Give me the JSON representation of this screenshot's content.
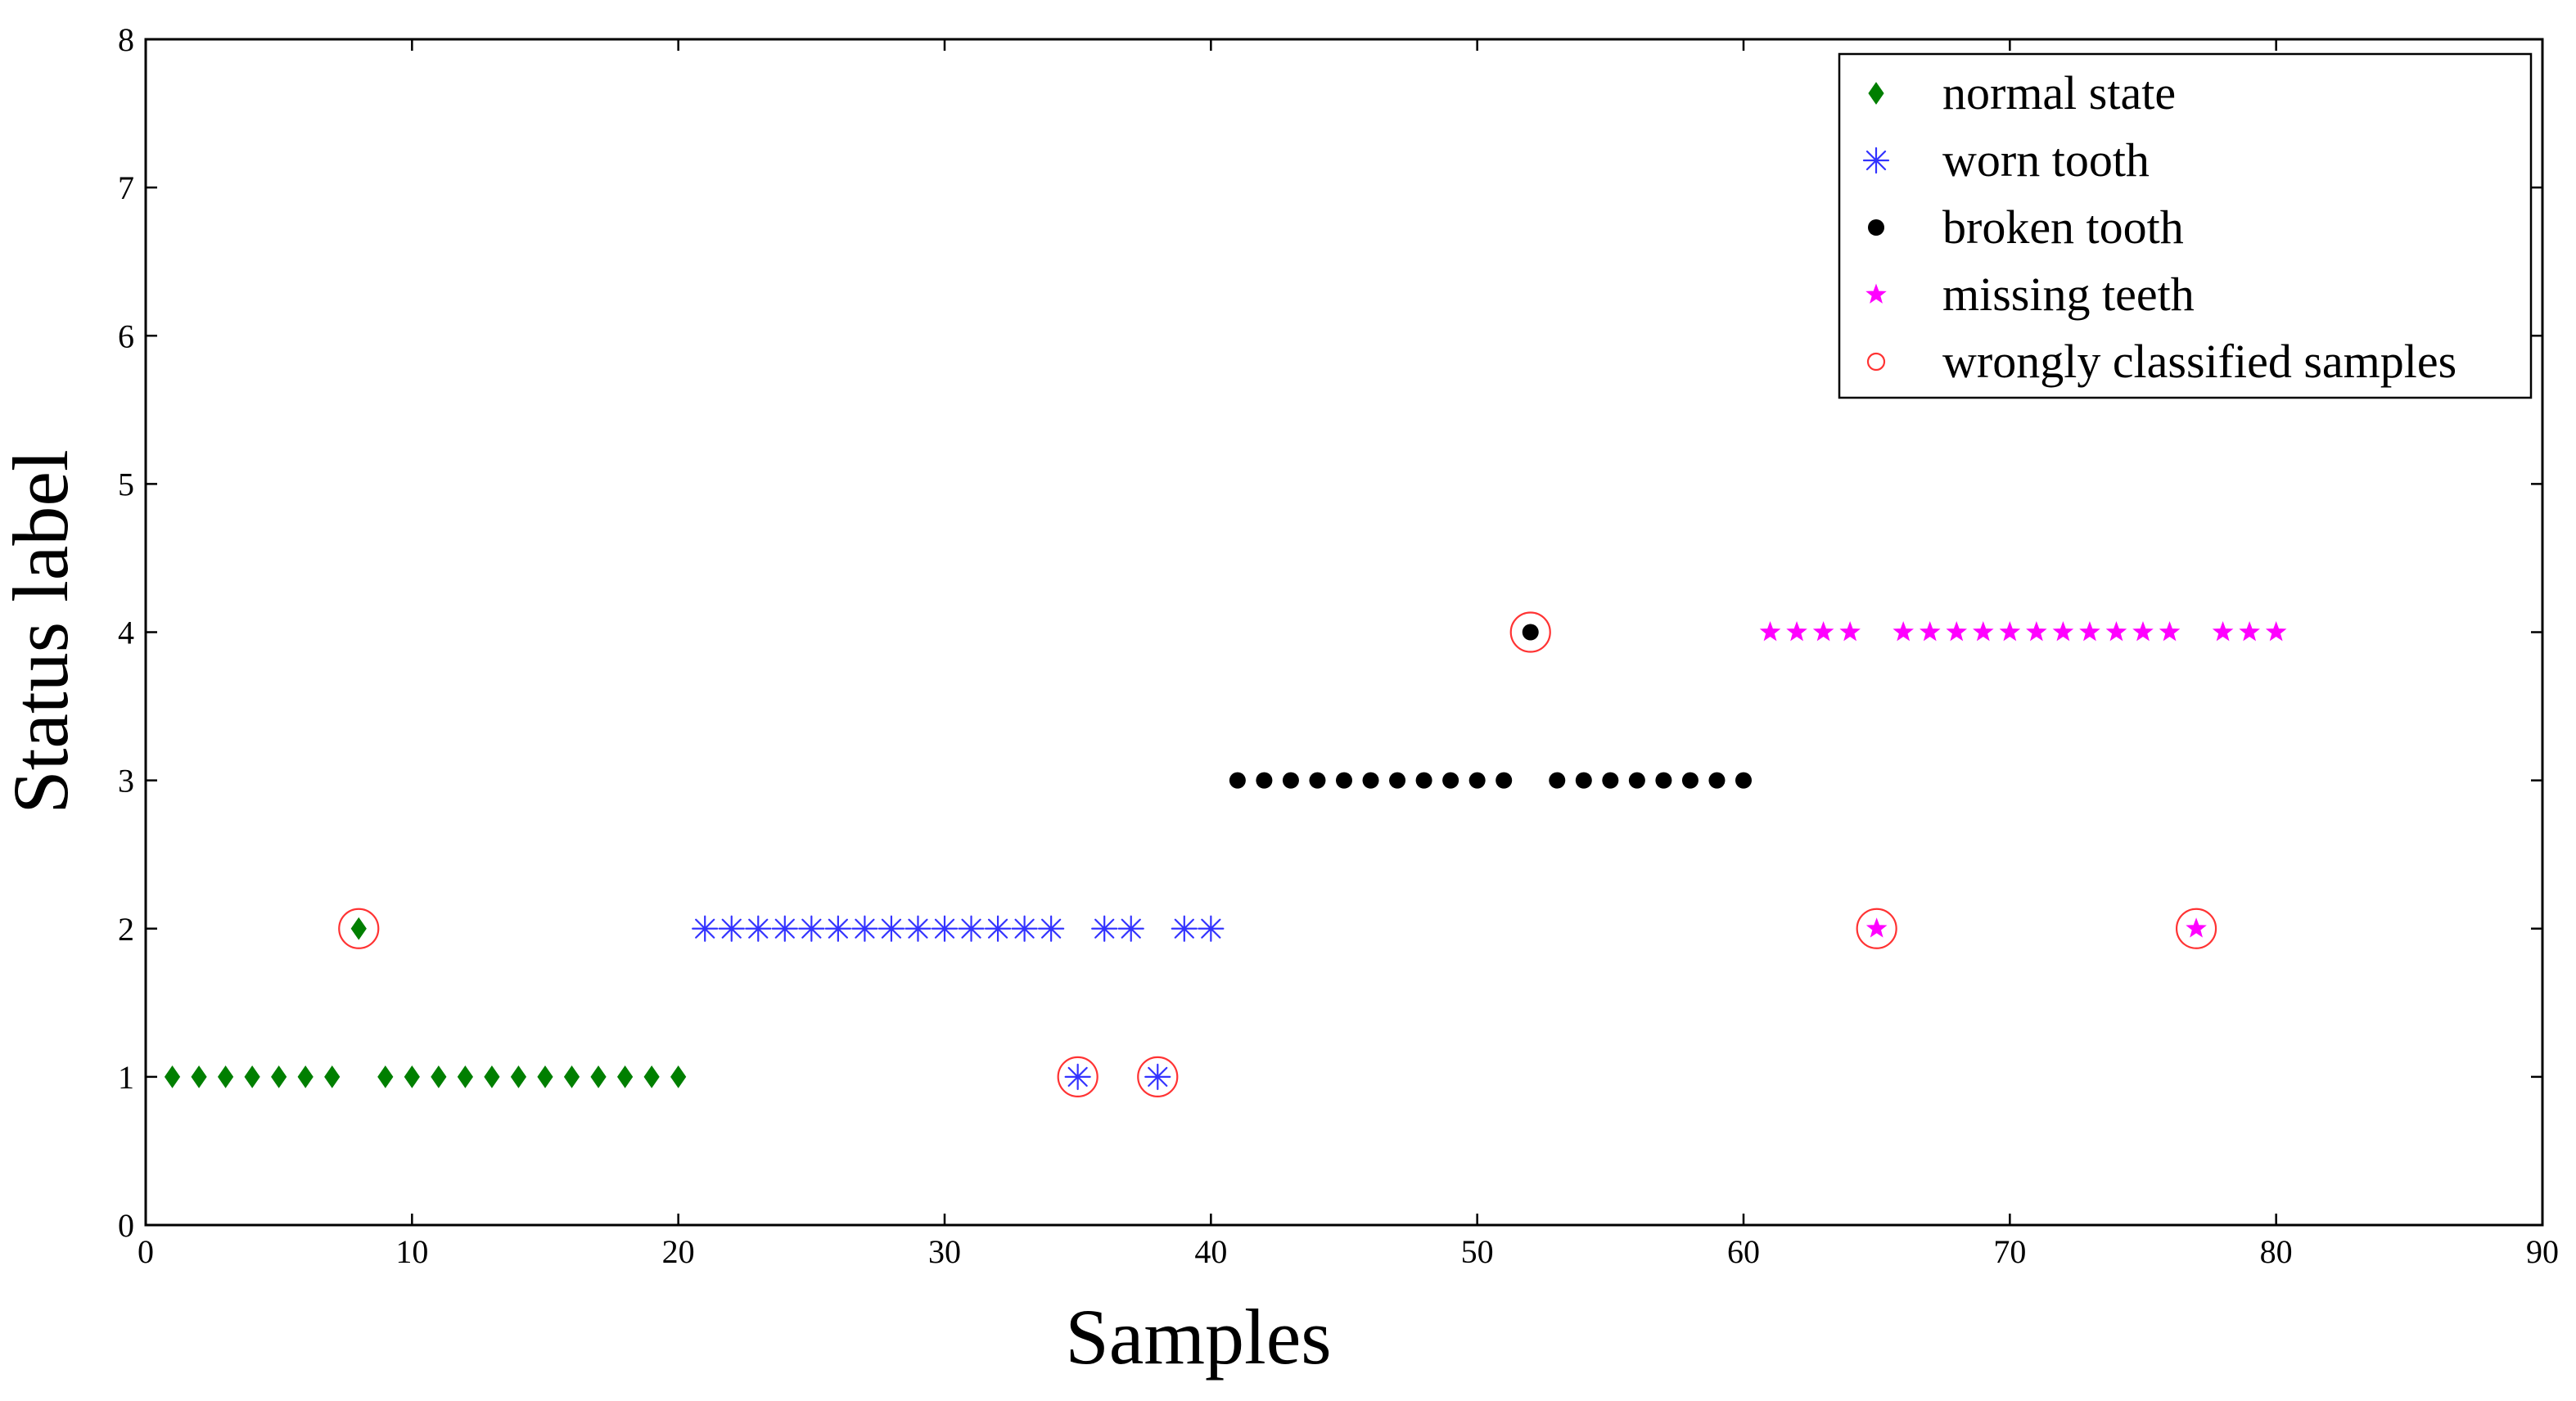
{
  "chart_data": {
    "type": "scatter",
    "title": "",
    "xlabel": "Samples",
    "ylabel": "Status label",
    "xlim": [
      0,
      90
    ],
    "ylim": [
      0,
      8
    ],
    "xticks": [
      0,
      10,
      20,
      30,
      40,
      50,
      60,
      70,
      80,
      90
    ],
    "yticks": [
      0,
      1,
      2,
      3,
      4,
      5,
      6,
      7,
      8
    ],
    "grid": false,
    "legend_position": "top-right",
    "series": [
      {
        "name": "normal state",
        "marker": "diamond",
        "color": "#007f00",
        "points": [
          [
            1,
            1
          ],
          [
            2,
            1
          ],
          [
            3,
            1
          ],
          [
            4,
            1
          ],
          [
            5,
            1
          ],
          [
            6,
            1
          ],
          [
            7,
            1
          ],
          [
            8,
            2
          ],
          [
            9,
            1
          ],
          [
            10,
            1
          ],
          [
            11,
            1
          ],
          [
            12,
            1
          ],
          [
            13,
            1
          ],
          [
            14,
            1
          ],
          [
            15,
            1
          ],
          [
            16,
            1
          ],
          [
            17,
            1
          ],
          [
            18,
            1
          ],
          [
            19,
            1
          ],
          [
            20,
            1
          ]
        ]
      },
      {
        "name": "worn tooth",
        "marker": "asterisk",
        "color": "#3333ff",
        "points": [
          [
            21,
            2
          ],
          [
            22,
            2
          ],
          [
            23,
            2
          ],
          [
            24,
            2
          ],
          [
            25,
            2
          ],
          [
            26,
            2
          ],
          [
            27,
            2
          ],
          [
            28,
            2
          ],
          [
            29,
            2
          ],
          [
            30,
            2
          ],
          [
            31,
            2
          ],
          [
            32,
            2
          ],
          [
            33,
            2
          ],
          [
            34,
            2
          ],
          [
            35,
            1
          ],
          [
            36,
            2
          ],
          [
            37,
            2
          ],
          [
            38,
            1
          ],
          [
            39,
            2
          ],
          [
            40,
            2
          ]
        ]
      },
      {
        "name": "broken tooth",
        "marker": "dot",
        "color": "#000000",
        "points": [
          [
            41,
            3
          ],
          [
            42,
            3
          ],
          [
            43,
            3
          ],
          [
            44,
            3
          ],
          [
            45,
            3
          ],
          [
            46,
            3
          ],
          [
            47,
            3
          ],
          [
            48,
            3
          ],
          [
            49,
            3
          ],
          [
            50,
            3
          ],
          [
            51,
            3
          ],
          [
            52,
            4
          ],
          [
            53,
            3
          ],
          [
            54,
            3
          ],
          [
            55,
            3
          ],
          [
            56,
            3
          ],
          [
            57,
            3
          ],
          [
            58,
            3
          ],
          [
            59,
            3
          ],
          [
            60,
            3
          ]
        ]
      },
      {
        "name": "missing teeth",
        "marker": "star",
        "color": "#ff00ff",
        "points": [
          [
            61,
            4
          ],
          [
            62,
            4
          ],
          [
            63,
            4
          ],
          [
            64,
            4
          ],
          [
            65,
            2
          ],
          [
            66,
            4
          ],
          [
            67,
            4
          ],
          [
            68,
            4
          ],
          [
            69,
            4
          ],
          [
            70,
            4
          ],
          [
            71,
            4
          ],
          [
            72,
            4
          ],
          [
            73,
            4
          ],
          [
            74,
            4
          ],
          [
            75,
            4
          ],
          [
            76,
            4
          ],
          [
            77,
            2
          ],
          [
            78,
            4
          ],
          [
            79,
            4
          ],
          [
            80,
            4
          ]
        ]
      },
      {
        "name": "wrongly classified samples",
        "marker": "circle",
        "color": "#ff3333",
        "points": [
          [
            8,
            2
          ],
          [
            35,
            1
          ],
          [
            38,
            1
          ],
          [
            52,
            4
          ],
          [
            65,
            2
          ],
          [
            77,
            2
          ]
        ]
      }
    ]
  }
}
